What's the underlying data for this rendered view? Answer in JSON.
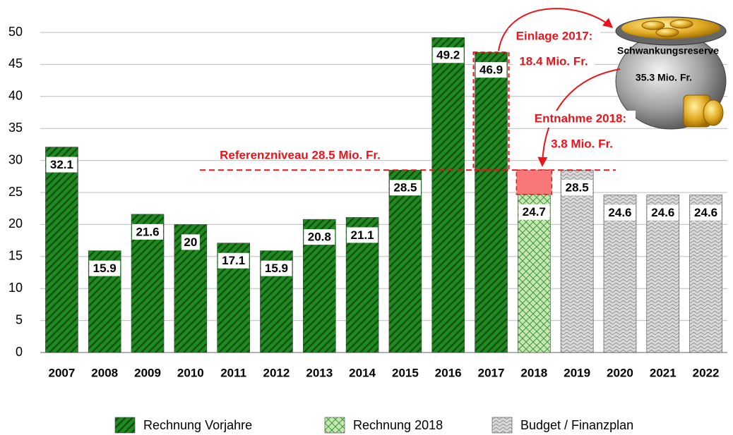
{
  "chart_data": {
    "type": "bar",
    "categories": [
      "2007",
      "2008",
      "2009",
      "2010",
      "2011",
      "2012",
      "2013",
      "2014",
      "2015",
      "2016",
      "2017",
      "2018",
      "2019",
      "2020",
      "2021",
      "2022"
    ],
    "series": [
      {
        "name": "Rechnung Vorjahre",
        "color": "#1f8a1f",
        "values": [
          32.1,
          15.9,
          21.6,
          20,
          17.1,
          15.9,
          20.8,
          21.1,
          28.5,
          49.2,
          46.9,
          null,
          null,
          null,
          null,
          null
        ]
      },
      {
        "name": "Rechnung 2018",
        "color": "#c8e6b4",
        "values": [
          null,
          null,
          null,
          null,
          null,
          null,
          null,
          null,
          null,
          null,
          null,
          24.7,
          null,
          null,
          null,
          null
        ]
      },
      {
        "name": "Budget / Finanzplan",
        "color": "#d9d9d9",
        "values": [
          null,
          null,
          null,
          null,
          null,
          null,
          null,
          null,
          null,
          null,
          null,
          null,
          28.5,
          24.6,
          24.6,
          24.6
        ]
      }
    ],
    "ylim": [
      0,
      50
    ],
    "yticks": [
      0,
      5,
      10,
      15,
      20,
      25,
      30,
      35,
      40,
      45,
      50
    ],
    "grid": true,
    "legend": "bottom",
    "reference_level": 28.5,
    "annotations": {
      "reference": "Referenzniveau 28.5 Mio. Fr.",
      "einlage": [
        "Einlage 2017:",
        "18.4 Mio. Fr."
      ],
      "entnahme": [
        "Entnahme 2018:",
        "3.8 Mio. Fr."
      ],
      "reserve": [
        "Schwankungsreserve",
        "35.3 Mio. Fr."
      ]
    }
  }
}
